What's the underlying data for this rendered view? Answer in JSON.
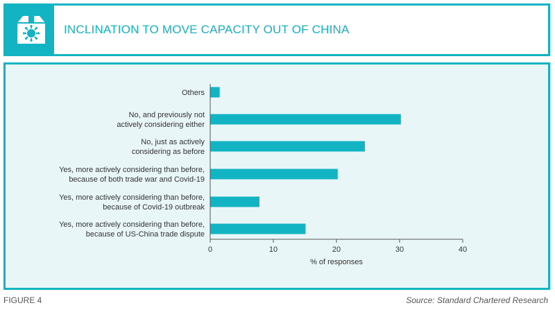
{
  "header": {
    "title": "INCLINATION TO MOVE CAPACITY OUT OF CHINA",
    "icon": "virus-box-icon",
    "accent_color": "#12b3c2"
  },
  "footer": {
    "figure_label": "FIGURE 4",
    "source": "Source: Standard Chartered Research"
  },
  "chart_data": {
    "type": "bar",
    "orientation": "horizontal",
    "categories": [
      [
        "Others"
      ],
      [
        "No, and previously not",
        "actively considering either"
      ],
      [
        "No, just as actively",
        "considering as before"
      ],
      [
        "Yes, more actively considering than before,",
        "because of both trade war and Covid-19"
      ],
      [
        "Yes, more actively considering than before,",
        "because of Covid-19 outbreak"
      ],
      [
        "Yes, more actively considering than before,",
        "because of US-China trade dispute"
      ]
    ],
    "values": [
      1.5,
      30.2,
      24.5,
      20.2,
      7.8,
      15.1
    ],
    "xlabel": "% of responses",
    "xlim": [
      0,
      40
    ],
    "xticks": [
      0,
      10,
      20,
      30,
      40
    ],
    "bar_color": "#12b3c2",
    "grid": false
  }
}
